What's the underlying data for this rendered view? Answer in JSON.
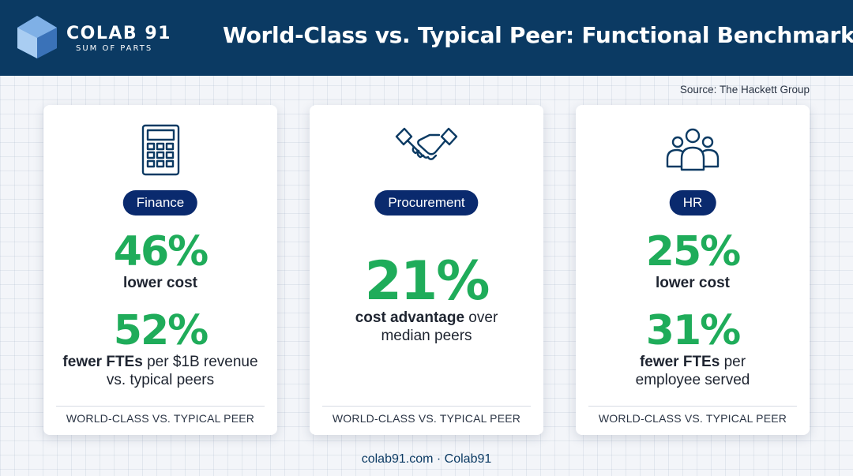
{
  "header": {
    "brand_name": "COLAB 91",
    "brand_tagline": "SUM OF PARTS",
    "title": "World-Class vs. Typical Peer: Functional Benchmarks"
  },
  "source": "Source: The Hackett Group",
  "colors": {
    "header_bg": "#0b3a63",
    "pill_bg": "#0a2a6e",
    "stat_green": "#1fac5a"
  },
  "cards": [
    {
      "icon": "calculator-icon",
      "label": "Finance",
      "stats": [
        {
          "value": "46%",
          "bold": "lower cost",
          "rest": "",
          "line2": ""
        },
        {
          "value": "52%",
          "bold": "fewer FTEs",
          "rest": " per $1B revenue",
          "line2": "vs. typical peers"
        }
      ],
      "footnote": "WORLD-CLASS VS. TYPICAL PEER"
    },
    {
      "icon": "handshake-icon",
      "label": "Procurement",
      "stats": [
        {
          "value": "21%",
          "bold": "cost advantage",
          "rest": " over",
          "line2": "median peers"
        }
      ],
      "footnote": "WORLD-CLASS VS. TYPICAL PEER"
    },
    {
      "icon": "people-group-icon",
      "label": "HR",
      "stats": [
        {
          "value": "25%",
          "bold": "lower cost",
          "rest": "",
          "line2": ""
        },
        {
          "value": "31%",
          "bold": "fewer FTEs",
          "rest": " per",
          "line2": "employee served"
        }
      ],
      "footnote": "WORLD-CLASS VS. TYPICAL PEER"
    }
  ],
  "footer": "colab91.com · Colab91"
}
